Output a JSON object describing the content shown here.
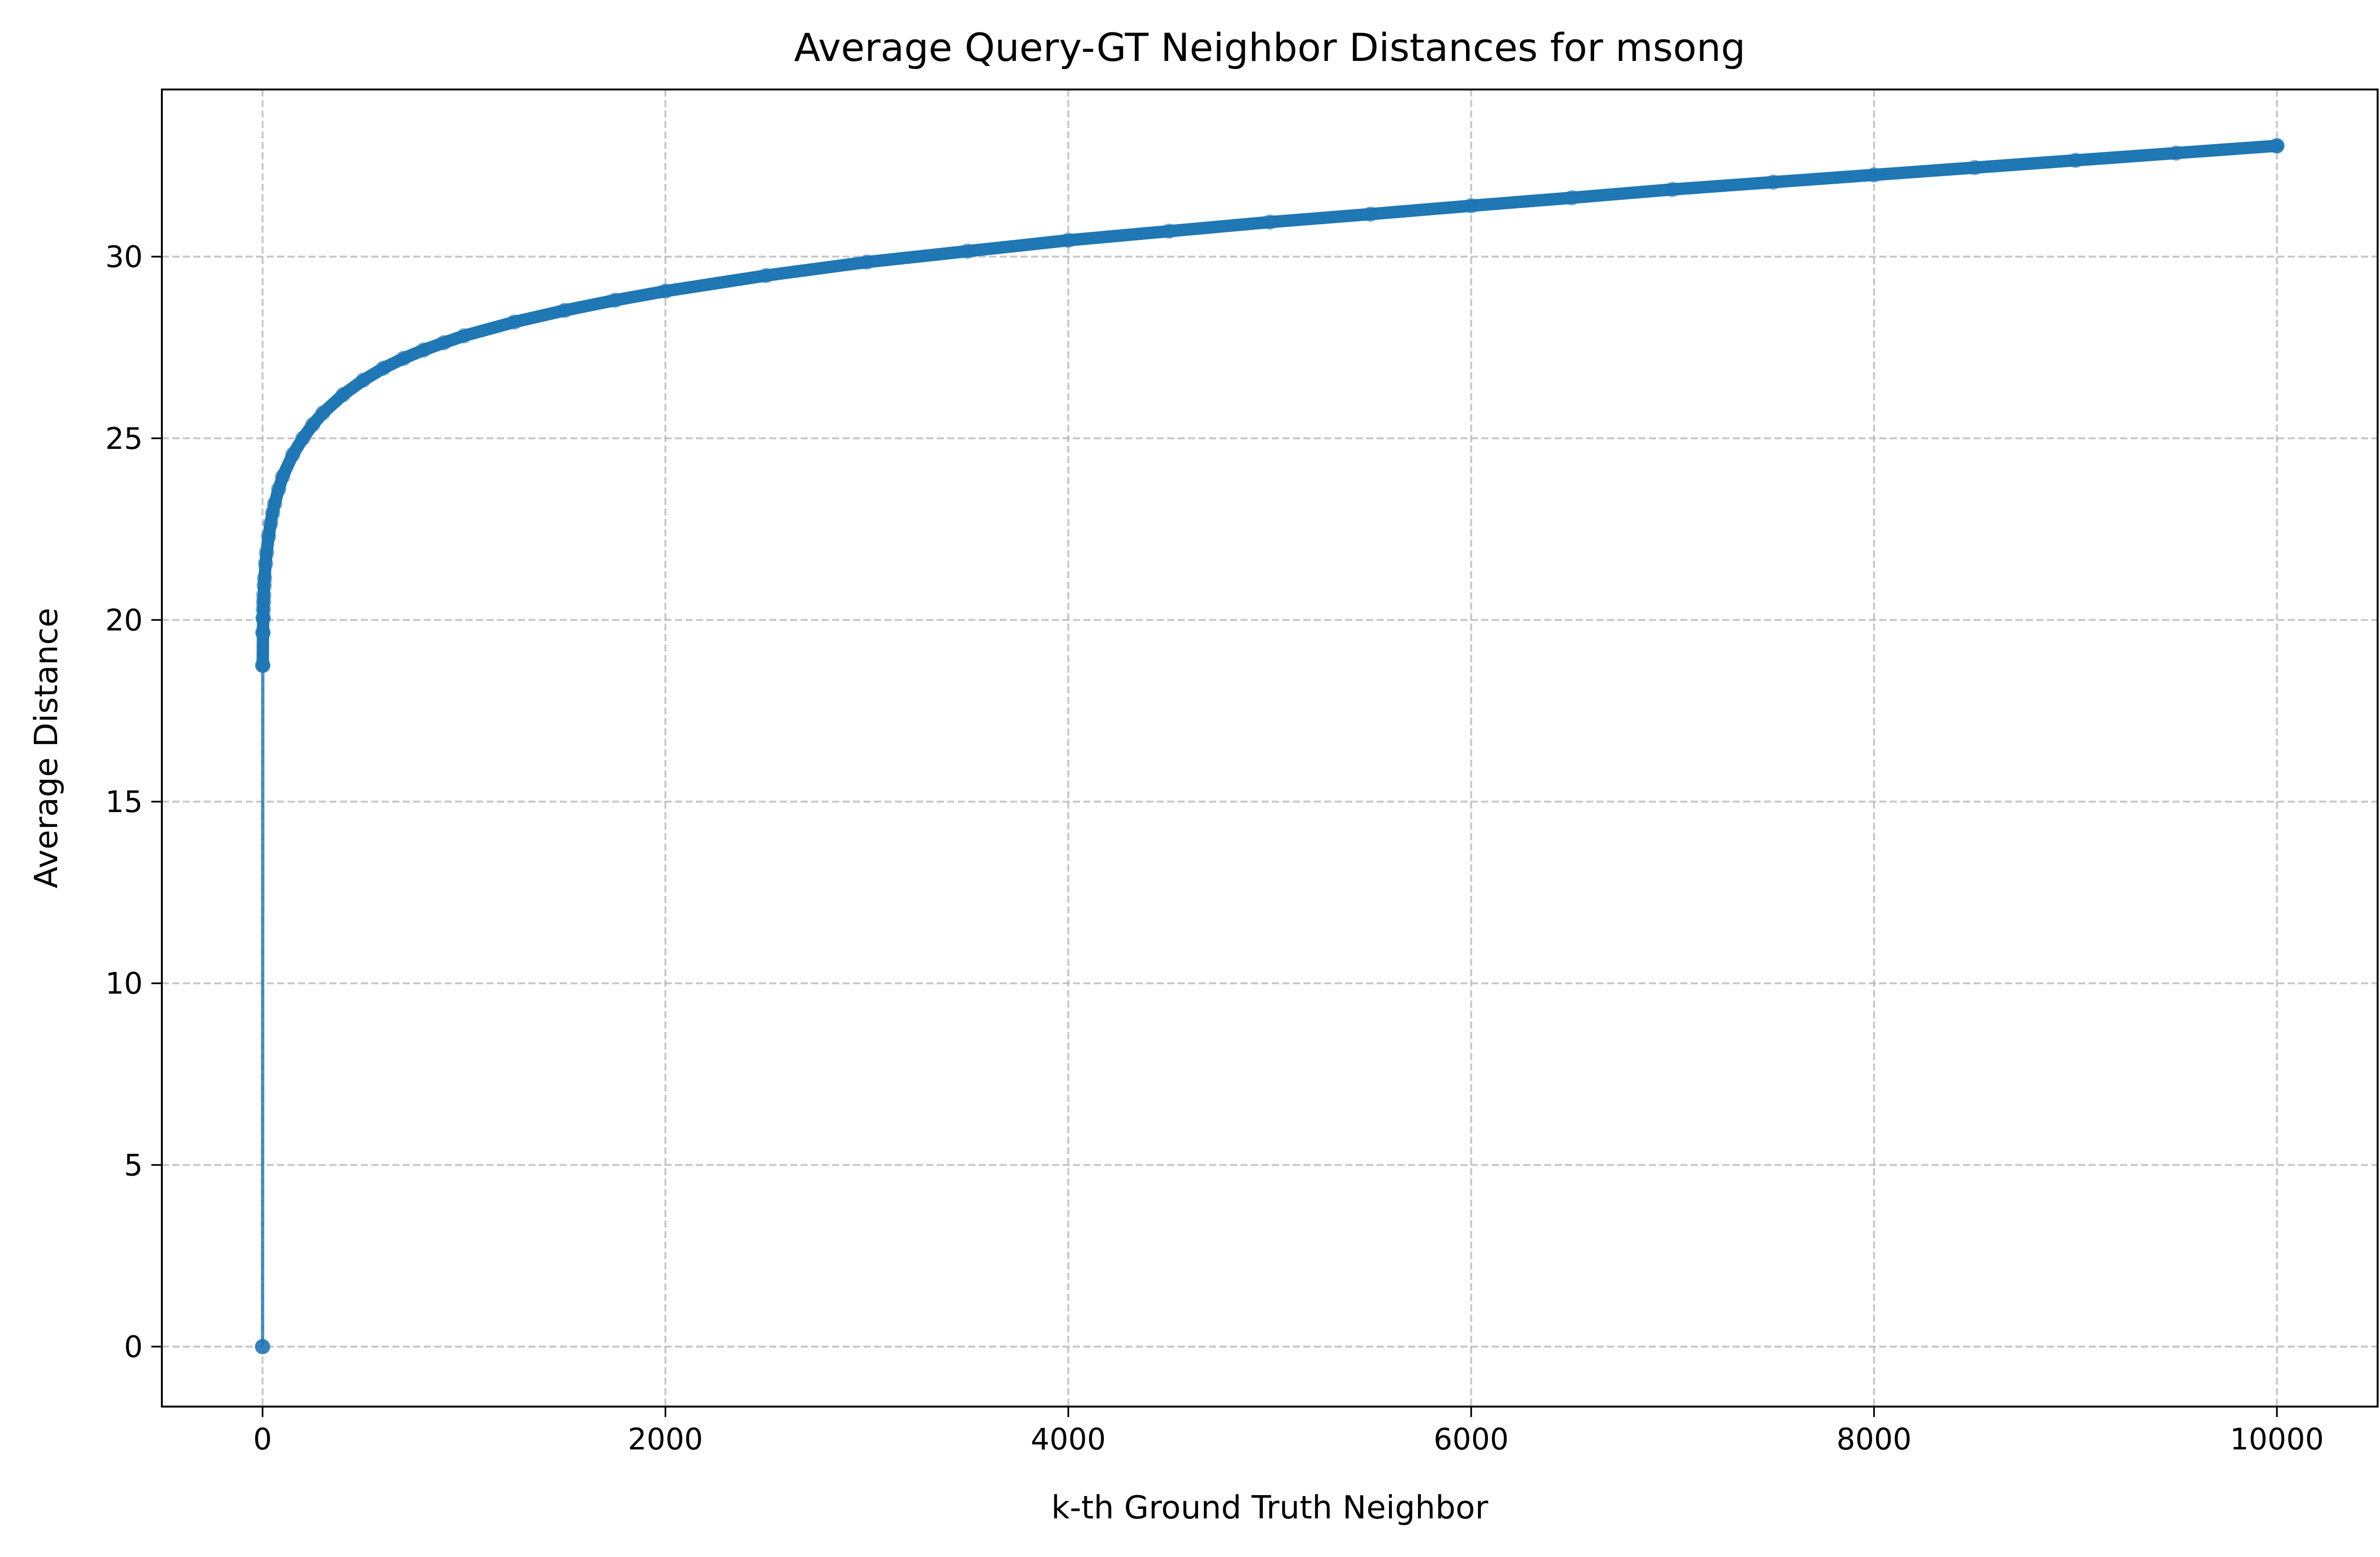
{
  "chart_data": {
    "type": "line",
    "title": "Average Query-GT Neighbor Distances for msong",
    "xlabel": "k-th Ground Truth Neighbor",
    "ylabel": "Average Distance",
    "xlim": [
      -500,
      10500
    ],
    "ylim": [
      -1.65,
      34.6
    ],
    "xticks": [
      0,
      2000,
      4000,
      6000,
      8000,
      10000
    ],
    "xtick_labels": [
      "0",
      "2000",
      "4000",
      "6000",
      "8000",
      "10000"
    ],
    "yticks": [
      0,
      5,
      10,
      15,
      20,
      25,
      30
    ],
    "ytick_labels": [
      "0",
      "5",
      "10",
      "15",
      "20",
      "25",
      "30"
    ],
    "grid": true,
    "legend": "none",
    "marker": "circle",
    "series": [
      {
        "color": "#1f77b4",
        "x": [
          0,
          1,
          2,
          3,
          4,
          5,
          6,
          8,
          10,
          15,
          20,
          30,
          40,
          50,
          60,
          80,
          100,
          150,
          200,
          250,
          300,
          400,
          500,
          600,
          700,
          800,
          900,
          1000,
          1250,
          1500,
          1750,
          2000,
          2500,
          3000,
          3500,
          4000,
          4500,
          5000,
          5500,
          6000,
          6500,
          7000,
          7500,
          8000,
          8500,
          9000,
          9500,
          10000
        ],
        "y": [
          0,
          18.75,
          19.65,
          20.05,
          20.3,
          20.5,
          20.68,
          20.95,
          21.15,
          21.55,
          21.85,
          22.3,
          22.65,
          22.95,
          23.2,
          23.6,
          23.95,
          24.55,
          25.0,
          25.38,
          25.7,
          26.2,
          26.6,
          26.93,
          27.2,
          27.43,
          27.63,
          27.82,
          28.2,
          28.52,
          28.8,
          29.05,
          29.48,
          29.85,
          30.15,
          30.45,
          30.7,
          30.95,
          31.17,
          31.4,
          31.62,
          31.85,
          32.05,
          32.25,
          32.45,
          32.65,
          32.85,
          33.05
        ]
      }
    ]
  }
}
